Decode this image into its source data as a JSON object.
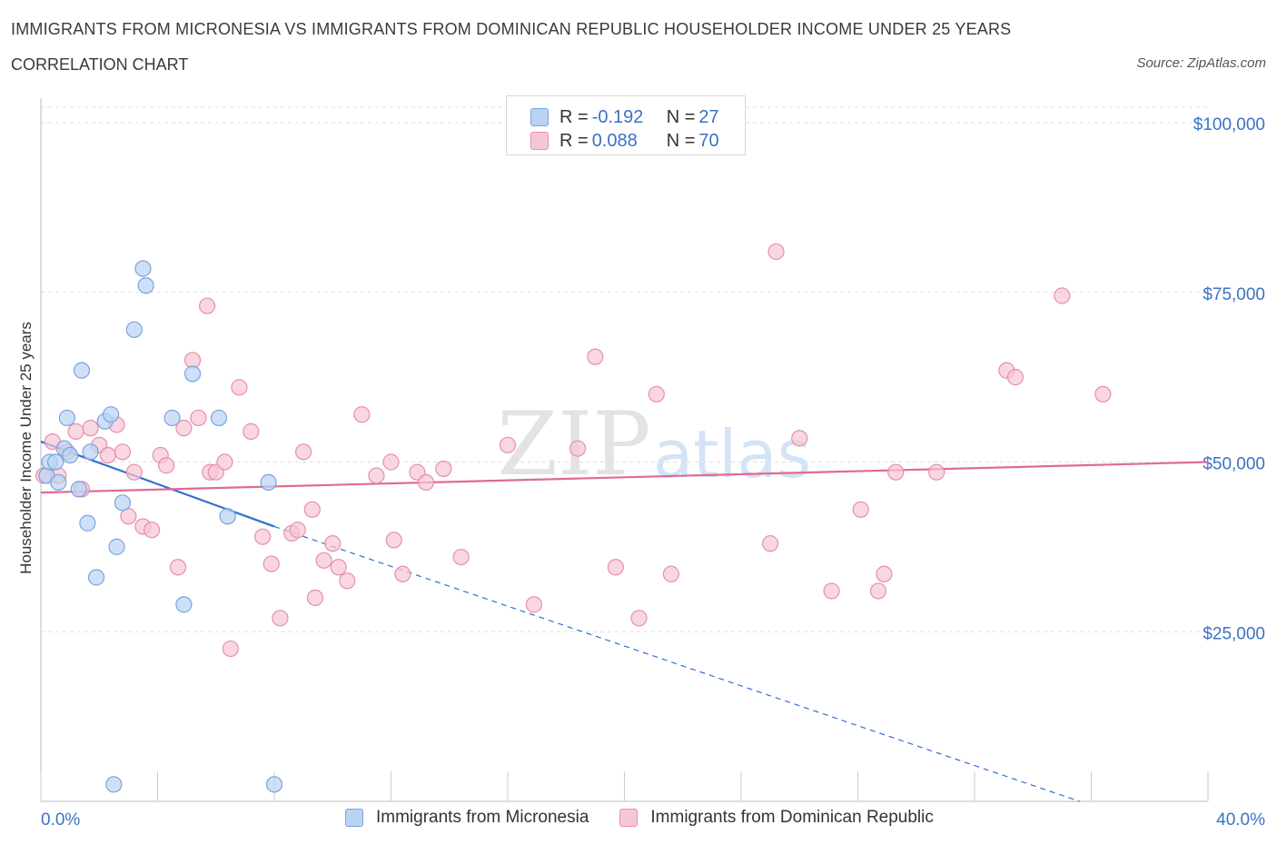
{
  "title": "IMMIGRANTS FROM MICRONESIA VS IMMIGRANTS FROM DOMINICAN REPUBLIC HOUSEHOLDER INCOME UNDER 25 YEARS",
  "subtitle": "CORRELATION CHART",
  "source": "Source: ZipAtlas.com",
  "watermark": {
    "zip": "ZIP",
    "atlas": "atlas"
  },
  "colors": {
    "blue_fill": "#b9d3f3",
    "blue_stroke": "#7ba3db",
    "blue_line": "#2f6fd0",
    "pink_fill": "#f7c6d5",
    "pink_stroke": "#e68fab",
    "pink_line": "#e06a94",
    "axis_label": "#3b72c4",
    "grid": "#dddddd"
  },
  "legend": {
    "r_label": "R = ",
    "n_label": "N = ",
    "rows": [
      {
        "r": "-0.192",
        "n": "27"
      },
      {
        "r": "0.088",
        "n": "70"
      }
    ]
  },
  "chart_data": {
    "type": "scatter",
    "xlabel": "",
    "ylabel": "Householder Income Under 25 years",
    "xlim": [
      0,
      40
    ],
    "ylim": [
      0,
      100000
    ],
    "x_tick_labels": [
      "0.0%",
      "40.0%"
    ],
    "y_tick_labels": [
      "$100,000",
      "$75,000",
      "$50,000",
      "$25,000"
    ],
    "y_ticks": [
      100000,
      75000,
      50000,
      25000
    ],
    "series": [
      {
        "name": "Immigrants from Micronesia",
        "color": "blue",
        "points": [
          [
            0.2,
            48000
          ],
          [
            0.3,
            50000
          ],
          [
            0.5,
            50000
          ],
          [
            0.6,
            47000
          ],
          [
            0.8,
            52000
          ],
          [
            0.9,
            56500
          ],
          [
            1.0,
            51000
          ],
          [
            1.3,
            46000
          ],
          [
            1.4,
            63500
          ],
          [
            1.6,
            41000
          ],
          [
            1.7,
            51500
          ],
          [
            1.9,
            33000
          ],
          [
            2.2,
            56000
          ],
          [
            2.4,
            57000
          ],
          [
            2.6,
            37500
          ],
          [
            2.8,
            44000
          ],
          [
            3.2,
            69500
          ],
          [
            3.5,
            78500
          ],
          [
            3.6,
            76000
          ],
          [
            4.5,
            56500
          ],
          [
            4.9,
            29000
          ],
          [
            5.2,
            63000
          ],
          [
            6.1,
            56500
          ],
          [
            6.4,
            42000
          ],
          [
            7.8,
            47000
          ],
          [
            2.5,
            2500
          ],
          [
            8.0,
            2500
          ]
        ],
        "trend": {
          "x0": 0,
          "y0": 53000,
          "x1": 8.0,
          "y1": 40500,
          "dash_x1": 35.6,
          "dash_y1": 0
        }
      },
      {
        "name": "Immigrants from Dominican Republic",
        "color": "pink",
        "points": [
          [
            0.1,
            48000
          ],
          [
            0.4,
            53000
          ],
          [
            0.6,
            48000
          ],
          [
            0.9,
            51500
          ],
          [
            1.4,
            46000
          ],
          [
            1.7,
            55000
          ],
          [
            2.0,
            52500
          ],
          [
            2.3,
            51000
          ],
          [
            2.6,
            55500
          ],
          [
            2.8,
            51500
          ],
          [
            3.0,
            42000
          ],
          [
            3.2,
            48500
          ],
          [
            3.5,
            40500
          ],
          [
            3.8,
            40000
          ],
          [
            4.1,
            51000
          ],
          [
            4.3,
            49500
          ],
          [
            4.7,
            34500
          ],
          [
            4.9,
            55000
          ],
          [
            5.2,
            65000
          ],
          [
            5.4,
            56500
          ],
          [
            5.7,
            73000
          ],
          [
            5.8,
            48500
          ],
          [
            6.0,
            48500
          ],
          [
            6.3,
            50000
          ],
          [
            6.8,
            61000
          ],
          [
            7.2,
            54500
          ],
          [
            7.6,
            39000
          ],
          [
            7.9,
            35000
          ],
          [
            8.2,
            27000
          ],
          [
            8.6,
            39500
          ],
          [
            8.8,
            40000
          ],
          [
            9.0,
            51500
          ],
          [
            9.3,
            43000
          ],
          [
            9.4,
            30000
          ],
          [
            9.7,
            35500
          ],
          [
            10.0,
            38000
          ],
          [
            10.2,
            34500
          ],
          [
            10.5,
            32500
          ],
          [
            11.0,
            57000
          ],
          [
            11.5,
            48000
          ],
          [
            12.0,
            50000
          ],
          [
            12.1,
            38500
          ],
          [
            12.4,
            33500
          ],
          [
            12.9,
            48500
          ],
          [
            13.2,
            47000
          ],
          [
            13.8,
            49000
          ],
          [
            14.4,
            36000
          ],
          [
            16.0,
            52500
          ],
          [
            16.9,
            29000
          ],
          [
            18.4,
            52000
          ],
          [
            19.0,
            65500
          ],
          [
            19.7,
            34500
          ],
          [
            20.5,
            27000
          ],
          [
            21.1,
            60000
          ],
          [
            21.6,
            33500
          ],
          [
            25.0,
            38000
          ],
          [
            25.2,
            81000
          ],
          [
            26.0,
            53500
          ],
          [
            27.1,
            31000
          ],
          [
            28.1,
            43000
          ],
          [
            28.7,
            31000
          ],
          [
            28.9,
            33500
          ],
          [
            29.3,
            48500
          ],
          [
            30.7,
            48500
          ],
          [
            33.1,
            63500
          ],
          [
            33.4,
            62500
          ],
          [
            35.0,
            74500
          ],
          [
            36.4,
            60000
          ],
          [
            6.5,
            22500
          ],
          [
            1.2,
            54500
          ]
        ],
        "trend": {
          "x0": 0,
          "y0": 45500,
          "x1": 40,
          "y1": 50000
        }
      }
    ]
  }
}
